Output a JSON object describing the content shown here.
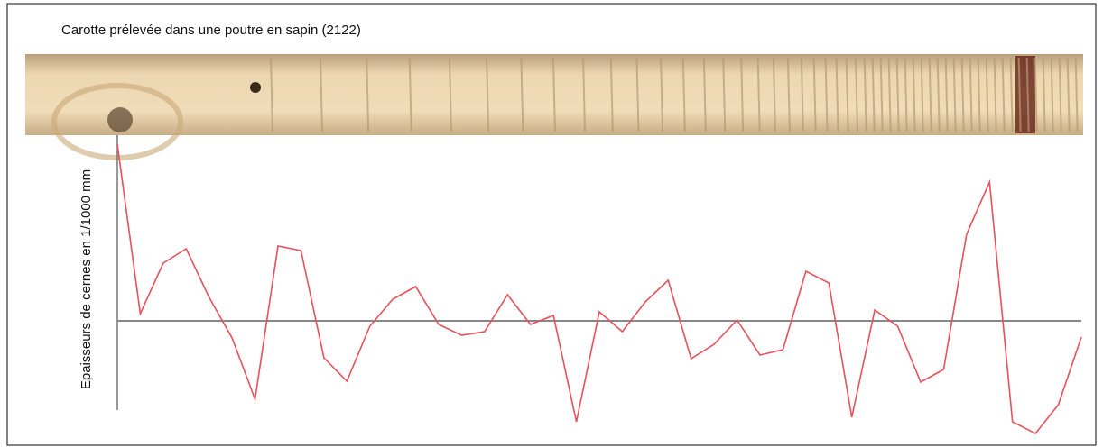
{
  "chart_data": {
    "type": "line",
    "title": "Carotte prélevée dans une poutre en sapin (2122)",
    "y_label": "Epaisseurs de cernes en 1/1000 mm",
    "color": "#e8505b",
    "values": [
      196,
      8,
      64,
      80,
      26,
      -19,
      -87,
      83,
      78,
      -41,
      -67,
      -6,
      24,
      38,
      -4,
      -16,
      -12,
      29,
      -4,
      6,
      -112,
      10,
      -12,
      21,
      45,
      -42,
      -26,
      1,
      -38,
      -32,
      55,
      42,
      -107,
      12,
      -6,
      -68,
      -54,
      96,
      154,
      -112,
      -125,
      -93,
      -18
    ],
    "ylim": [
      -130,
      200
    ]
  }
}
